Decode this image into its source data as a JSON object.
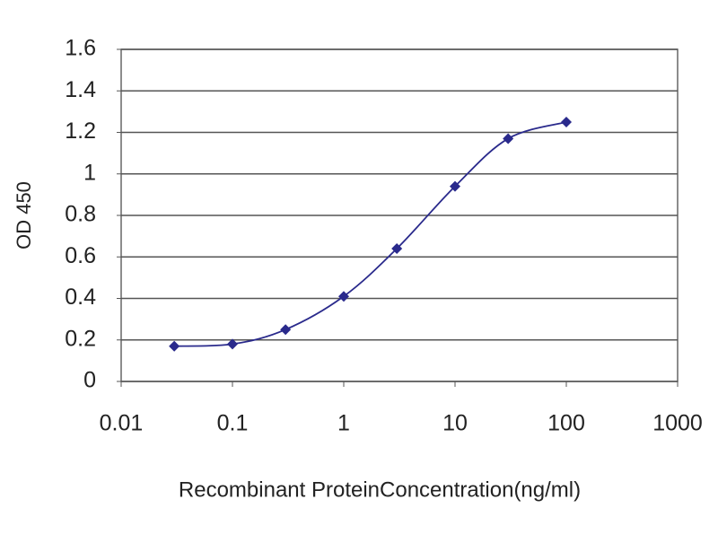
{
  "chart_data": {
    "type": "line",
    "x_label": "Recombinant ProteinConcentration(ng/ml)",
    "y_label": "OD 450",
    "xscale": "log",
    "grid": true,
    "x": [
      0.03,
      0.1,
      0.3,
      1,
      3,
      10,
      30,
      100
    ],
    "series": [
      {
        "color": "#2a2a8c",
        "values": [
          0.17,
          0.18,
          0.25,
          0.41,
          0.64,
          0.94,
          1.17,
          1.25
        ]
      }
    ],
    "xlim": [
      0.01,
      1000
    ],
    "xticks": [
      0.01,
      0.1,
      1,
      10,
      100,
      1000
    ],
    "ylim": [
      0,
      1.6
    ],
    "yticks": [
      0,
      0.2,
      0.4,
      0.6,
      0.8,
      1,
      1.2,
      1.4,
      1.6
    ]
  }
}
